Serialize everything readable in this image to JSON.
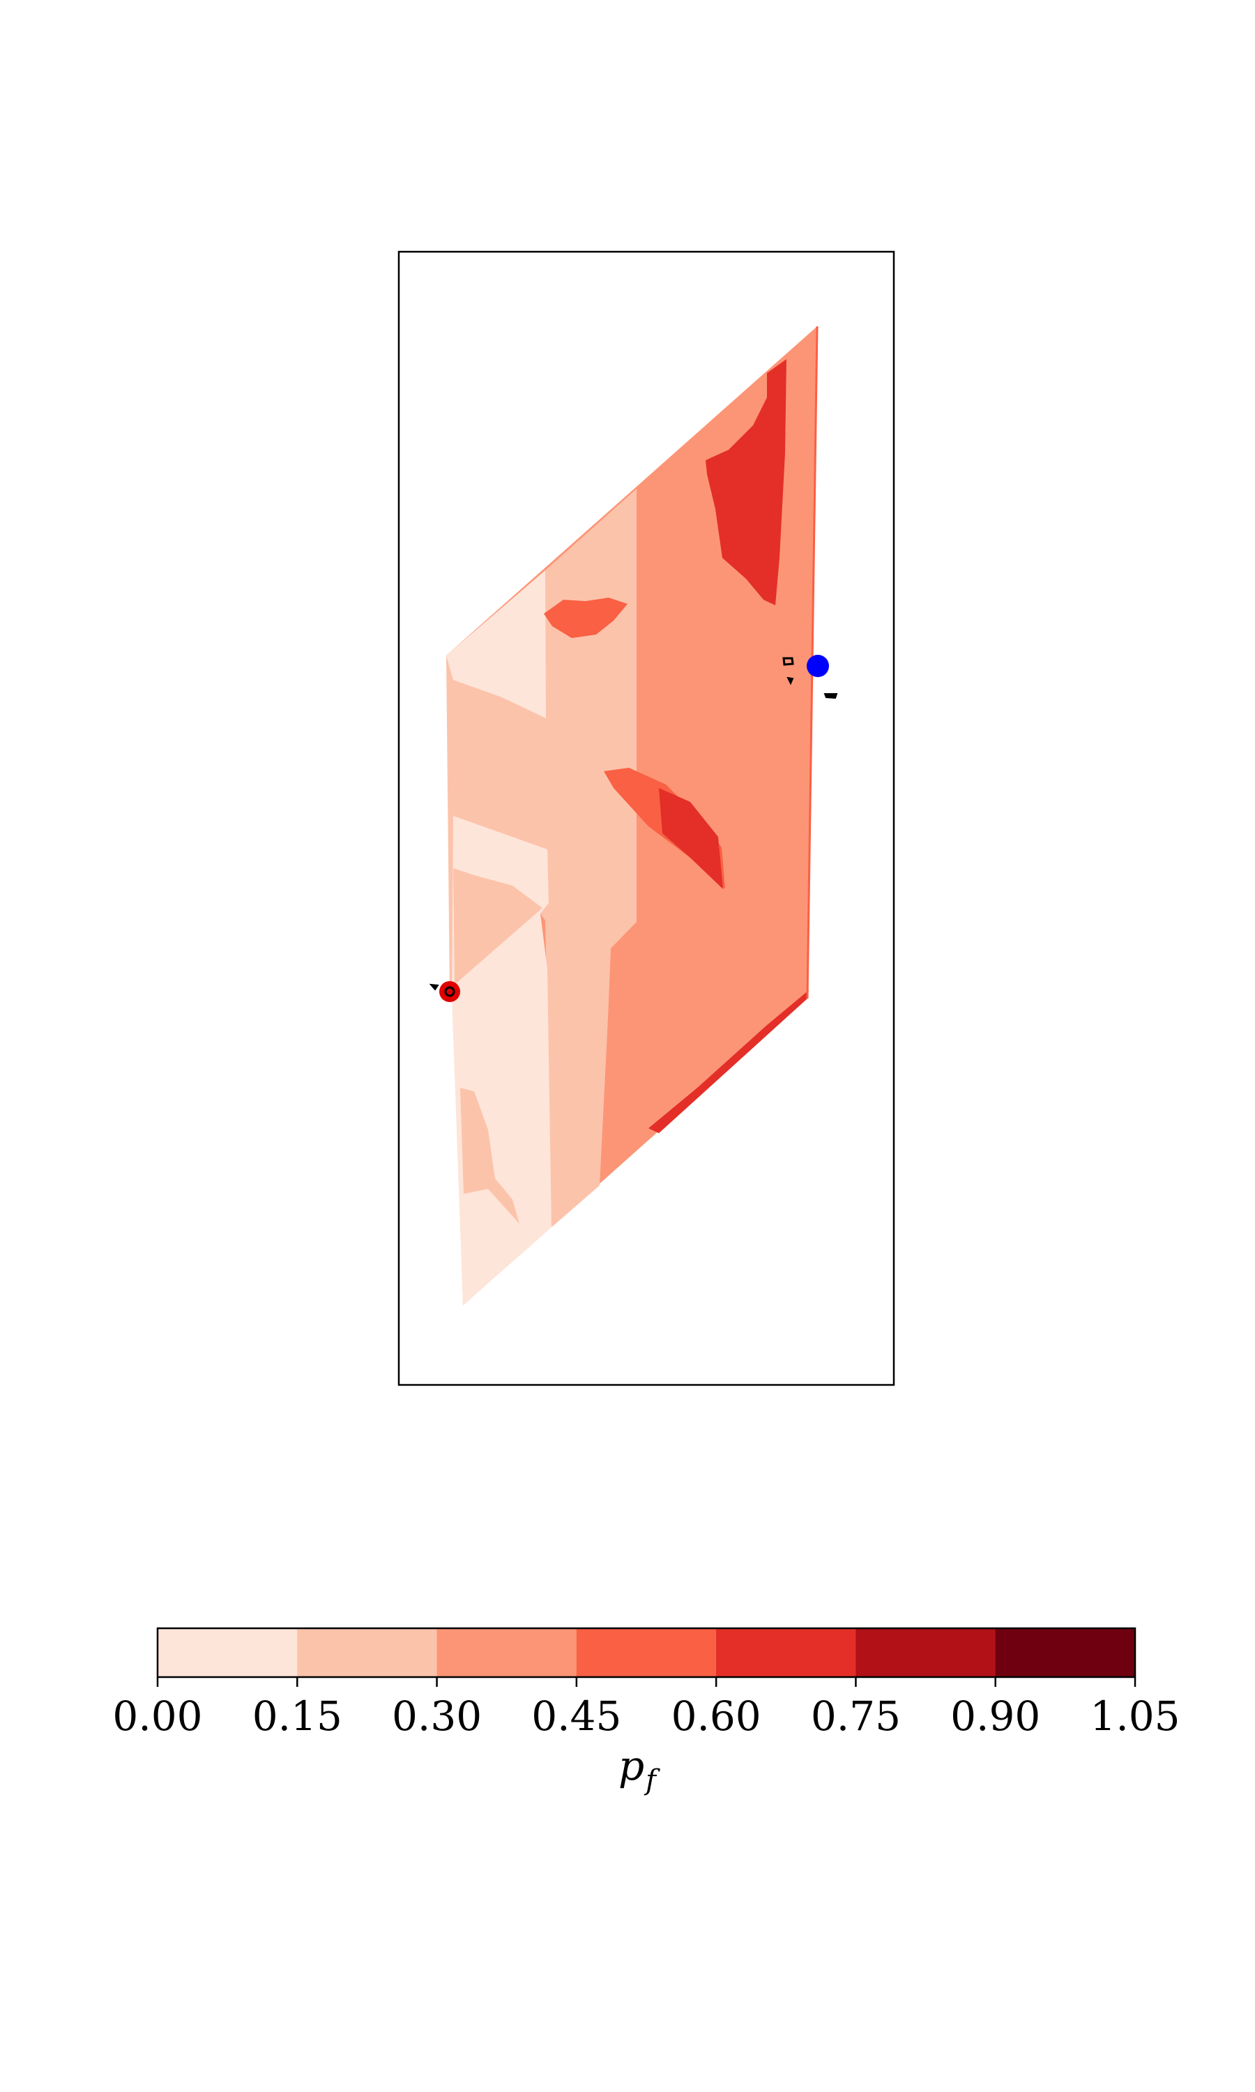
{
  "chart_data": {
    "type": "heatmap",
    "title": "",
    "axes_ticks_visible": false,
    "colormap": "Reds",
    "levels": [
      0.0,
      0.15,
      0.3,
      0.45,
      0.6,
      0.75,
      0.9,
      1.05
    ],
    "level_colors": [
      "#fee5d9",
      "#fcc3ab",
      "#fc9576",
      "#f96044",
      "#e32f27",
      "#b11117",
      "#6f0010"
    ],
    "region_levels": {
      "base": 0.3,
      "left_column": 0.0,
      "middle_band": 0.15,
      "upper_blob": 0.45,
      "mid_streak_light": 0.45,
      "mid_streak_dark": 0.6,
      "top_right_blob": 0.6,
      "bottom_edge_strip": 0.6
    },
    "markers": [
      {
        "name": "blue point",
        "color": "#0000ff"
      },
      {
        "name": "red point",
        "color": "#e00000"
      }
    ],
    "colorbar": {
      "orientation": "horizontal",
      "ticks": [
        "0.00",
        "0.15",
        "0.30",
        "0.45",
        "0.60",
        "0.75",
        "0.90",
        "1.05"
      ],
      "label": "p",
      "label_subscript": "f"
    }
  }
}
